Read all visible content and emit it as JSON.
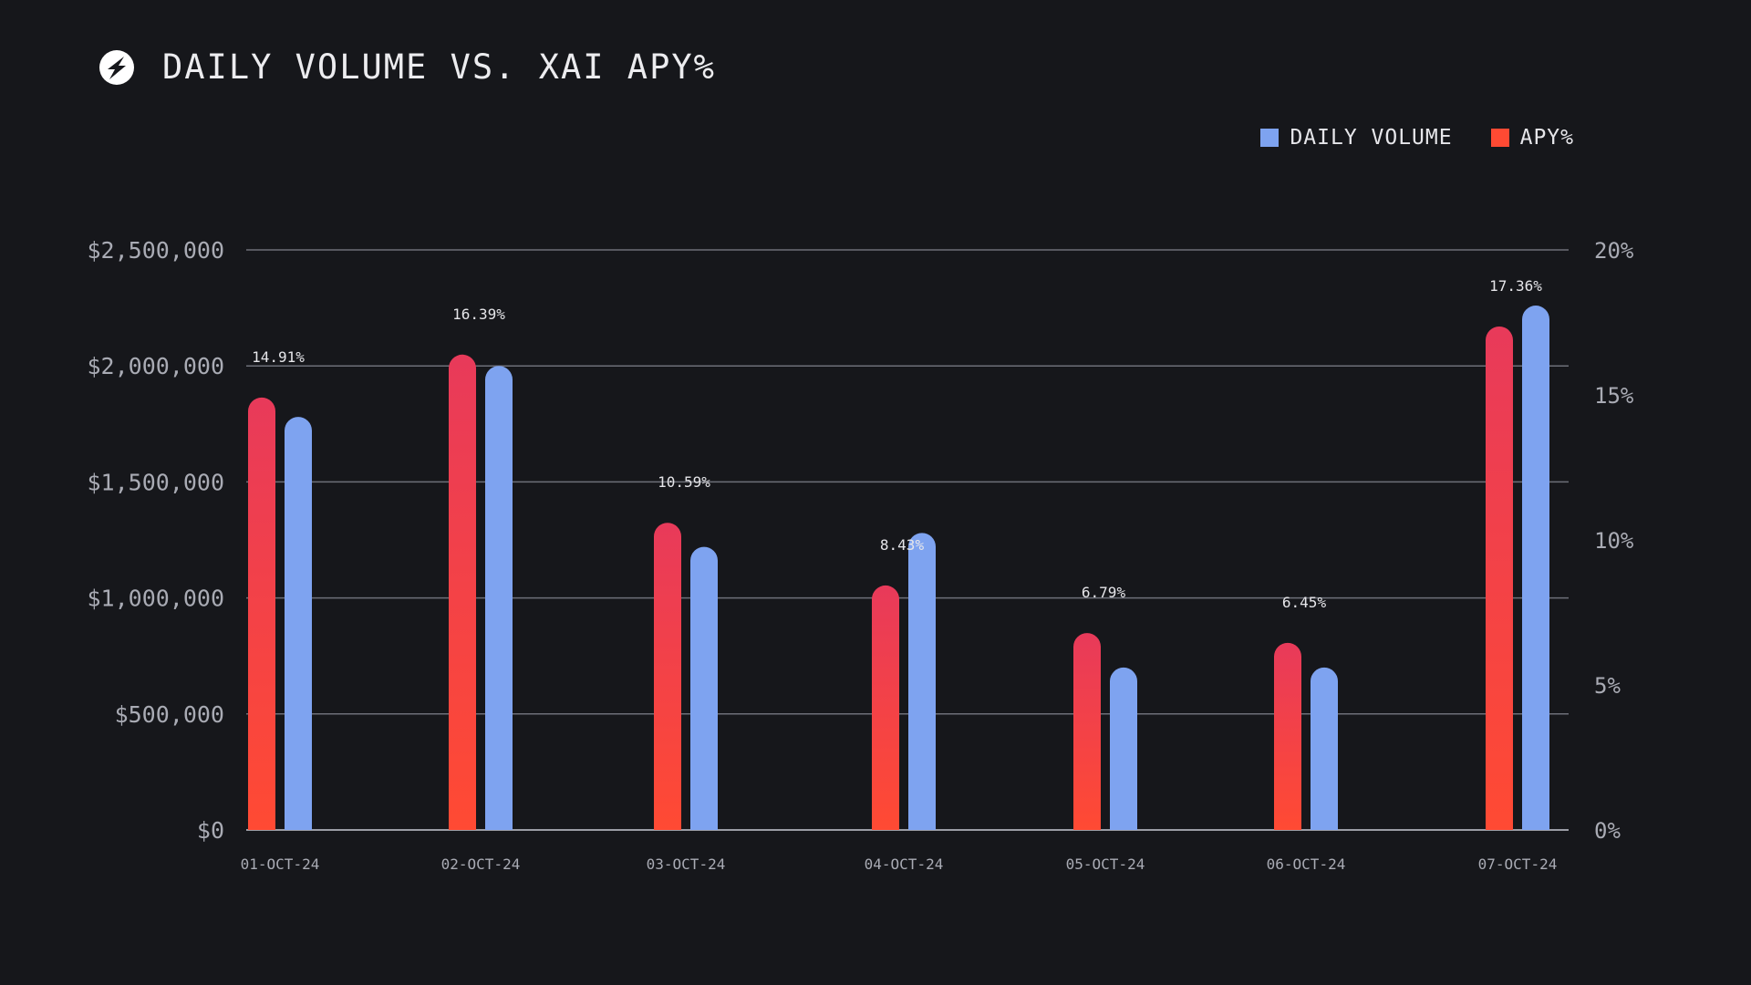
{
  "header": {
    "title": "DAILY VOLUME VS. XAI APY%",
    "logo_icon": "s-logo-icon"
  },
  "legend": [
    {
      "label": "DAILY VOLUME",
      "color": "#7ea3f0"
    },
    {
      "label": "APY%",
      "color": "#ff4a33"
    }
  ],
  "chart_data": {
    "type": "bar",
    "title": "DAILY VOLUME VS. XAI APY%",
    "categories": [
      "01-OCT-24",
      "02-OCT-24",
      "03-OCT-24",
      "04-OCT-24",
      "05-OCT-24",
      "06-OCT-24",
      "07-OCT-24"
    ],
    "series": [
      {
        "name": "APY%",
        "axis": "right",
        "values": [
          14.91,
          16.39,
          10.59,
          8.43,
          6.79,
          6.45,
          17.36
        ],
        "labels": [
          "14.91%",
          "16.39%",
          "10.59%",
          "8.43%",
          "6.79%",
          "6.45%",
          "17.36%"
        ],
        "color_top": "#e83a5a",
        "color_bottom": "#ff4a33"
      },
      {
        "name": "DAILY VOLUME",
        "axis": "left",
        "values": [
          1780000,
          2000000,
          1220000,
          1280000,
          700000,
          700000,
          2260000
        ],
        "color": "#7ea3f0"
      }
    ],
    "left_axis": {
      "ylim": [
        0,
        2500000
      ],
      "ticks": [
        0,
        500000,
        1000000,
        1500000,
        2000000,
        2500000
      ],
      "tick_labels": [
        "$0",
        "$500,000",
        "$1,000,000",
        "$1,500,000",
        "$2,000,000",
        "$2,500,000"
      ]
    },
    "right_axis": {
      "ylim": [
        0,
        20
      ],
      "ticks": [
        0,
        5,
        10,
        15,
        20
      ],
      "tick_labels": [
        "0%",
        "5%",
        "10%",
        "15%",
        "20%"
      ]
    },
    "grid": true,
    "legend_position": "top-right"
  }
}
